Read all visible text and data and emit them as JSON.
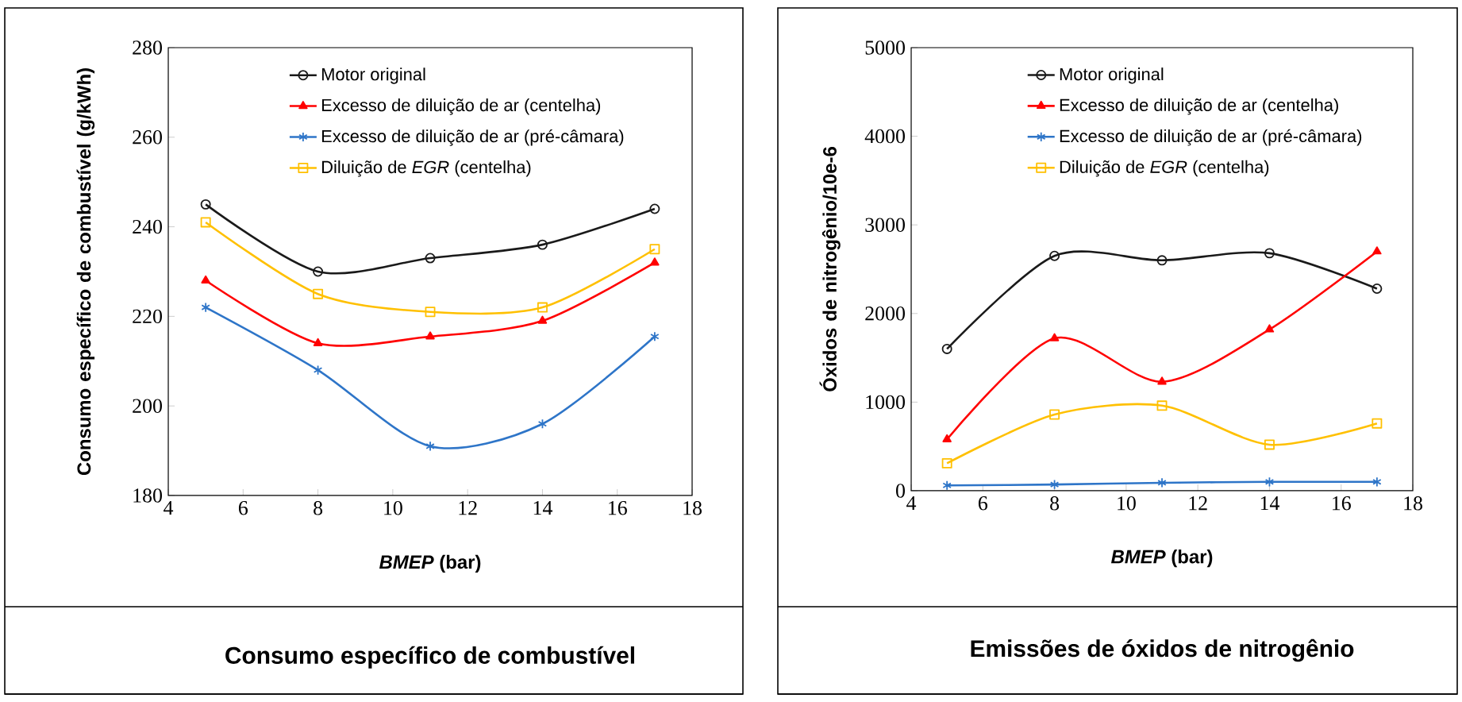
{
  "chart_data": [
    {
      "type": "line",
      "title": "Consumo específico de combustível",
      "xlabel": "*BMEP* (bar)",
      "ylabel": "Consumo específico de combustível (g/kWh)",
      "x": [
        5,
        8,
        11,
        14,
        17
      ],
      "xlim": [
        4,
        18
      ],
      "ylim": [
        180,
        280
      ],
      "xticks": [
        4,
        6,
        8,
        10,
        12,
        14,
        16,
        18
      ],
      "yticks": [
        180,
        200,
        220,
        240,
        260,
        280
      ],
      "legend": "top",
      "grid": false,
      "series": [
        {
          "name": "Motor original",
          "color": "#1a1a1a",
          "marker": "circle",
          "values": [
            245,
            230,
            233,
            236,
            244
          ]
        },
        {
          "name": "Excesso de diluição de ar (centelha)",
          "color": "#ff0000",
          "marker": "triangle",
          "values": [
            228,
            214,
            215.5,
            219,
            232
          ]
        },
        {
          "name": "Excesso de diluição de ar (pré-câmara)",
          "color": "#2e75c8",
          "marker": "cross",
          "values": [
            222,
            208,
            191,
            196,
            215.5
          ]
        },
        {
          "name": "Diluição de *EGR* (centelha)",
          "color": "#ffc000",
          "marker": "square",
          "values": [
            241,
            225,
            221,
            222,
            235
          ]
        }
      ]
    },
    {
      "type": "line",
      "title": "Emissões de óxidos de nitrogênio",
      "xlabel": "*BMEP* (bar)",
      "ylabel": "Óxidos de nitrogênio/10e-6",
      "x": [
        5,
        8,
        11,
        14,
        17
      ],
      "xlim": [
        4,
        18
      ],
      "ylim": [
        0,
        5000
      ],
      "xticks": [
        4,
        6,
        8,
        10,
        12,
        14,
        16,
        18
      ],
      "yticks": [
        0,
        1000,
        2000,
        3000,
        4000,
        5000
      ],
      "legend": "top",
      "grid": false,
      "series": [
        {
          "name": "Motor original",
          "color": "#1a1a1a",
          "marker": "circle",
          "values": [
            1600,
            2650,
            2600,
            2680,
            2280
          ]
        },
        {
          "name": "Excesso de diluição de ar (centelha)",
          "color": "#ff0000",
          "marker": "triangle",
          "values": [
            580,
            1720,
            1230,
            1820,
            2700
          ]
        },
        {
          "name": "Excesso de diluição de ar (pré-câmara)",
          "color": "#2e75c8",
          "marker": "cross",
          "values": [
            60,
            70,
            90,
            100,
            100
          ]
        },
        {
          "name": "Diluição de *EGR* (centelha)",
          "color": "#ffc000",
          "marker": "square",
          "values": [
            310,
            860,
            960,
            520,
            760
          ]
        }
      ]
    }
  ]
}
